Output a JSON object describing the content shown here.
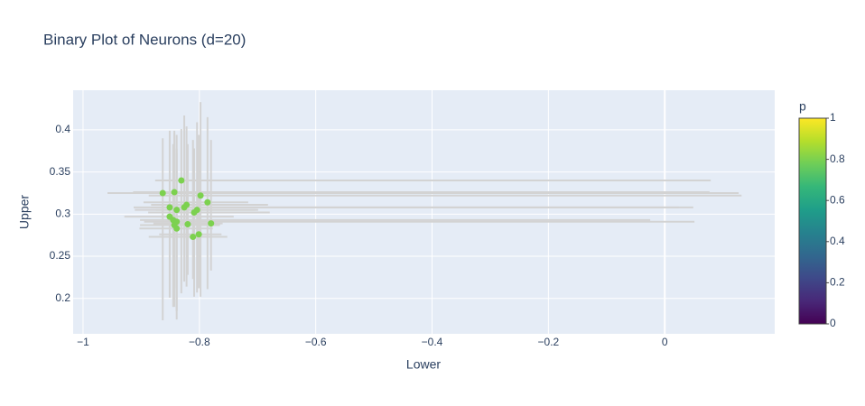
{
  "chart_data": {
    "type": "scatter",
    "title": "Binary Plot of Neurons (d=20)",
    "x_label": "Lower",
    "y_label": "Upper",
    "x": [
      -0.863,
      -0.843,
      -0.831,
      -0.798,
      -0.786,
      -0.851,
      -0.826,
      -0.822,
      -0.839,
      -0.804,
      -0.809,
      -0.851,
      -0.845,
      -0.839,
      -0.843,
      -0.82,
      -0.78,
      -0.839,
      -0.811,
      -0.801
    ],
    "y": [
      0.325,
      0.326,
      0.34,
      0.322,
      0.314,
      0.308,
      0.308,
      0.311,
      0.305,
      0.305,
      0.302,
      0.297,
      0.293,
      0.291,
      0.287,
      0.288,
      0.289,
      0.283,
      0.273,
      0.276
    ],
    "error_x": {
      "plus": [
        0.99,
        0.92,
        0.91,
        0.93,
        0.07,
        0.9,
        0.85,
        0.14,
        0.14,
        0.1,
        0.13,
        0.11,
        0.82,
        0.89,
        0.078,
        0.056,
        0.02,
        0.062,
        0.059,
        0.039
      ],
      "minus": [
        0.095,
        0.071,
        0.045,
        0.089,
        0.11,
        0.062,
        0.057,
        0.061,
        0.072,
        0.071,
        0.079,
        0.078,
        0.057,
        0.056,
        0.059,
        0.051,
        0.099,
        0.064,
        0.076,
        0.068
      ]
    },
    "error_y": {
      "plus": [
        0.065,
        0.073,
        0.061,
        0.111,
        0.101,
        0.091,
        0.109,
        0.093,
        0.089,
        0.104,
        0.076,
        0.091,
        0.09,
        0.087,
        0.109,
        0.095,
        0.099,
        0.089,
        0.115,
        0.118
      ],
      "minus": [
        0.151,
        0.136,
        0.134,
        0.12,
        0.103,
        0.107,
        0.088,
        0.097,
        0.12,
        0.098,
        0.1,
        0.096,
        0.103,
        0.116,
        0.075,
        0.06,
        0.056,
        0.098,
        0.05,
        0.064
      ]
    },
    "p": [
      0.8,
      0.8,
      0.8,
      0.8,
      0.8,
      0.8,
      0.8,
      0.8,
      0.8,
      0.8,
      0.8,
      0.8,
      0.8,
      0.8,
      0.8,
      0.8,
      0.8,
      0.8,
      0.8,
      0.8
    ],
    "error_color": "#d3d3d3",
    "colorscale": [
      "#440154",
      "#482878",
      "#3e4989",
      "#31688e",
      "#26828e",
      "#1f9e89",
      "#35b779",
      "#6ece58",
      "#b5de2b",
      "#fde725"
    ],
    "colorbar_title": "p",
    "clim": [
      0,
      1
    ],
    "cticks": [
      0,
      0.2,
      0.4,
      0.6,
      0.8,
      1
    ],
    "xlim": [
      -1.017,
      0.189
    ],
    "ylim": [
      0.158,
      0.447
    ],
    "xticks": [
      {
        "value": -1,
        "label": "−1"
      },
      {
        "value": -0.8,
        "label": "−0.8"
      },
      {
        "value": -0.6,
        "label": "−0.6"
      },
      {
        "value": -0.4,
        "label": "−0.4"
      },
      {
        "value": -0.2,
        "label": "−0.2"
      },
      0
    ],
    "yticks": [
      0.2,
      0.25,
      0.3,
      0.35,
      0.4
    ],
    "grid": true
  }
}
